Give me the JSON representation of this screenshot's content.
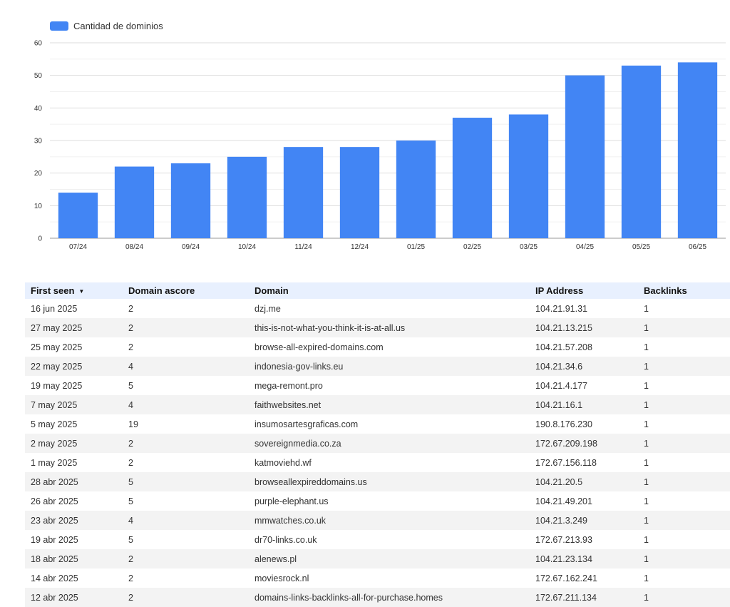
{
  "chart_data": {
    "type": "bar",
    "categories": [
      "07/24",
      "08/24",
      "09/24",
      "10/24",
      "11/24",
      "12/24",
      "01/25",
      "02/25",
      "03/25",
      "04/25",
      "05/25",
      "06/25"
    ],
    "series": [
      {
        "name": "Cantidad de dominios",
        "values": [
          14,
          22,
          23,
          25,
          28,
          28,
          30,
          37,
          38,
          50,
          53,
          54
        ]
      }
    ],
    "yticks": [
      0,
      10,
      20,
      30,
      40,
      50,
      60
    ],
    "ylim": [
      0,
      60
    ],
    "title": "",
    "xlabel": "",
    "ylabel": "",
    "grid": true,
    "legend_position": "top-left",
    "bar_color": "#4285f4"
  },
  "table": {
    "columns": [
      {
        "key": "first_seen",
        "label": "First seen",
        "sort_icon": "▼"
      },
      {
        "key": "ascore",
        "label": "Domain ascore"
      },
      {
        "key": "domain",
        "label": "Domain"
      },
      {
        "key": "ip",
        "label": "IP Address"
      },
      {
        "key": "backlinks",
        "label": "Backlinks"
      }
    ],
    "rows": [
      [
        "16 jun 2025",
        "2",
        "dzj.me",
        "104.21.91.31",
        "1"
      ],
      [
        "27 may 2025",
        "2",
        "this-is-not-what-you-think-it-is-at-all.us",
        "104.21.13.215",
        "1"
      ],
      [
        "25 may 2025",
        "2",
        "browse-all-expired-domains.com",
        "104.21.57.208",
        "1"
      ],
      [
        "22 may 2025",
        "4",
        "indonesia-gov-links.eu",
        "104.21.34.6",
        "1"
      ],
      [
        "19 may 2025",
        "5",
        "mega-remont.pro",
        "104.21.4.177",
        "1"
      ],
      [
        "7 may 2025",
        "4",
        "faithwebsites.net",
        "104.21.16.1",
        "1"
      ],
      [
        "5 may 2025",
        "19",
        "insumosartesgraficas.com",
        "190.8.176.230",
        "1"
      ],
      [
        "2 may 2025",
        "2",
        "sovereignmedia.co.za",
        "172.67.209.198",
        "1"
      ],
      [
        "1 may 2025",
        "2",
        "katmoviehd.wf",
        "172.67.156.118",
        "1"
      ],
      [
        "28 abr 2025",
        "5",
        "browseallexpireddomains.us",
        "104.21.20.5",
        "1"
      ],
      [
        "26 abr 2025",
        "5",
        "purple-elephant.us",
        "104.21.49.201",
        "1"
      ],
      [
        "23 abr 2025",
        "4",
        "mmwatches.co.uk",
        "104.21.3.249",
        "1"
      ],
      [
        "19 abr 2025",
        "5",
        "dr70-links.co.uk",
        "172.67.213.93",
        "1"
      ],
      [
        "18 abr 2025",
        "2",
        "alenews.pl",
        "104.21.23.134",
        "1"
      ],
      [
        "14 abr 2025",
        "2",
        "moviesrock.nl",
        "172.67.162.241",
        "1"
      ],
      [
        "12 abr 2025",
        "2",
        "domains-links-backlinks-all-for-purchase.homes",
        "172.67.211.134",
        "1"
      ]
    ]
  }
}
